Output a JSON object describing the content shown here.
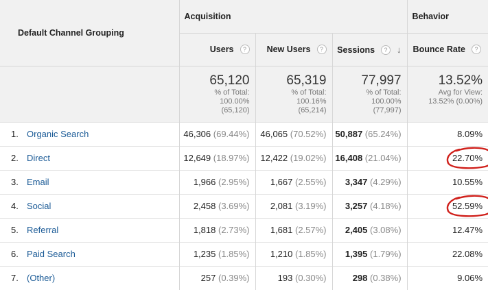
{
  "header": {
    "dimension": "Default Channel Grouping",
    "group_acquisition": "Acquisition",
    "group_behavior": "Behavior",
    "columns": [
      "Users",
      "New Users",
      "Sessions",
      "Bounce Rate"
    ],
    "help_glyph": "?",
    "sort_glyph": "↓"
  },
  "totals": [
    {
      "value": "65,120",
      "line1": "% of Total:",
      "line2": "100.00%",
      "line3": "(65,120)"
    },
    {
      "value": "65,319",
      "line1": "% of Total:",
      "line2": "100.16%",
      "line3": "(65,214)"
    },
    {
      "value": "77,997",
      "line1": "% of Total:",
      "line2": "100.00%",
      "line3": "(77,997)"
    },
    {
      "value": "13.52%",
      "line1": "Avg for View:",
      "line2": "13.52% (0.00%)",
      "line3": ""
    }
  ],
  "rows": [
    {
      "idx": "1.",
      "channel": "Organic Search",
      "users": "46,306",
      "users_pct": "(69.44%)",
      "new_users": "46,065",
      "new_users_pct": "(70.52%)",
      "sessions": "50,887",
      "sessions_pct": "(65.24%)",
      "bounce": "8.09%",
      "circled": false
    },
    {
      "idx": "2.",
      "channel": "Direct",
      "users": "12,649",
      "users_pct": "(18.97%)",
      "new_users": "12,422",
      "new_users_pct": "(19.02%)",
      "sessions": "16,408",
      "sessions_pct": "(21.04%)",
      "bounce": "22.70%",
      "circled": true
    },
    {
      "idx": "3.",
      "channel": "Email",
      "users": "1,966",
      "users_pct": "(2.95%)",
      "new_users": "1,667",
      "new_users_pct": "(2.55%)",
      "sessions": "3,347",
      "sessions_pct": "(4.29%)",
      "bounce": "10.55%",
      "circled": false
    },
    {
      "idx": "4.",
      "channel": "Social",
      "users": "2,458",
      "users_pct": "(3.69%)",
      "new_users": "2,081",
      "new_users_pct": "(3.19%)",
      "sessions": "3,257",
      "sessions_pct": "(4.18%)",
      "bounce": "52.59%",
      "circled": true
    },
    {
      "idx": "5.",
      "channel": "Referral",
      "users": "1,818",
      "users_pct": "(2.73%)",
      "new_users": "1,681",
      "new_users_pct": "(2.57%)",
      "sessions": "2,405",
      "sessions_pct": "(3.08%)",
      "bounce": "12.47%",
      "circled": false
    },
    {
      "idx": "6.",
      "channel": "Paid Search",
      "users": "1,235",
      "users_pct": "(1.85%)",
      "new_users": "1,210",
      "new_users_pct": "(1.85%)",
      "sessions": "1,395",
      "sessions_pct": "(1.79%)",
      "bounce": "22.08%",
      "circled": false
    },
    {
      "idx": "7.",
      "channel": "(Other)",
      "users": "257",
      "users_pct": "(0.39%)",
      "new_users": "193",
      "new_users_pct": "(0.30%)",
      "sessions": "298",
      "sessions_pct": "(0.38%)",
      "bounce": "9.06%",
      "circled": false
    }
  ],
  "colors": {
    "link": "#1a5a96",
    "annotation": "#d0211c",
    "header_bg": "#f1f1f1"
  }
}
